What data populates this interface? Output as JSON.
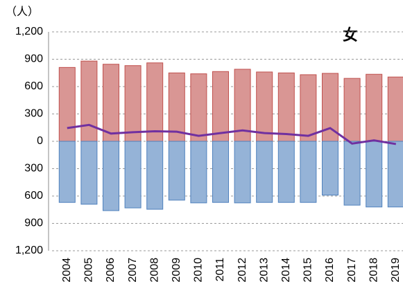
{
  "chart_data": {
    "type": "bar-line",
    "title": "女",
    "y_label": "（人）",
    "categories": [
      "2004",
      "2005",
      "2006",
      "2007",
      "2008",
      "2009",
      "2010",
      "2011",
      "2012",
      "2013",
      "2014",
      "2015",
      "2016",
      "2017",
      "2018",
      "2019"
    ],
    "series": [
      {
        "type": "bar",
        "color": "#d99694",
        "stroke": "#c0504d",
        "values": [
          810,
          880,
          845,
          830,
          860,
          750,
          740,
          765,
          790,
          760,
          750,
          730,
          745,
          690,
          735,
          705
        ]
      },
      {
        "type": "bar",
        "color": "#95b3d7",
        "stroke": "#4f81bd",
        "values": [
          -670,
          -690,
          -760,
          -730,
          -745,
          -645,
          -675,
          -670,
          -675,
          -670,
          -670,
          -670,
          -590,
          -700,
          -720,
          -720
        ]
      },
      {
        "type": "line",
        "color": "#7030a0",
        "values": [
          145,
          180,
          85,
          100,
          110,
          105,
          60,
          90,
          120,
          90,
          80,
          60,
          145,
          -25,
          10,
          -30
        ]
      }
    ],
    "ylim": [
      -1200,
      1200
    ],
    "yticks": [
      {
        "value": -1200,
        "label": "1,200"
      },
      {
        "value": -900,
        "label": "900"
      },
      {
        "value": -600,
        "label": "600"
      },
      {
        "value": -300,
        "label": "300"
      },
      0,
      300,
      600,
      900,
      {
        "value": 1200,
        "label": "1,200"
      }
    ],
    "grid": true
  }
}
